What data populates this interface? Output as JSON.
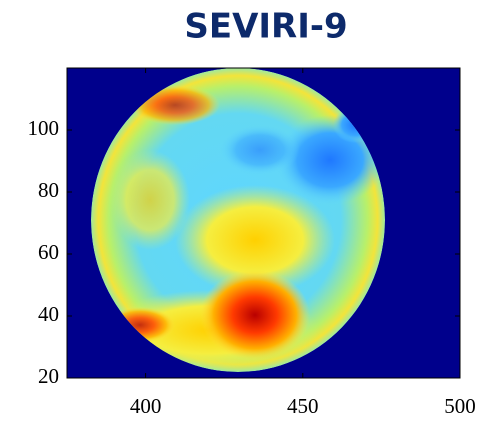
{
  "chart_data": {
    "type": "image",
    "title": "SEVIRI-9",
    "xlim": [
      375,
      500
    ],
    "xticks": [
      400,
      450,
      500
    ],
    "ylim": [
      20,
      120
    ],
    "yticks": [
      20,
      40,
      60,
      80,
      100
    ]
  }
}
